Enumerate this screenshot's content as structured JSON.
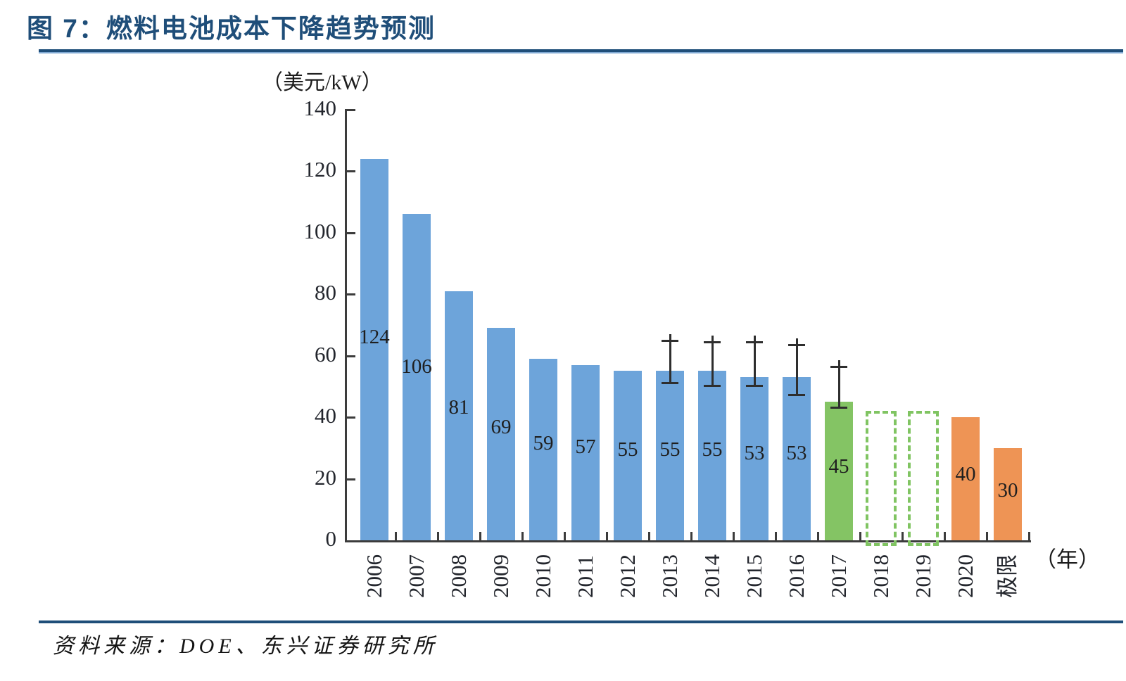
{
  "figure": {
    "title": "图 7：燃料电池成本下降趋势预测",
    "source": "资料来源：DOE、东兴证券研究所"
  },
  "chart_data": {
    "type": "bar",
    "title": "燃料电池成本下降趋势预测",
    "y_unit_label": "（美元/kW）",
    "x_unit_label": "（年）",
    "ylim": [
      0,
      140
    ],
    "ytick_interval": 20,
    "yticks": [
      0,
      20,
      40,
      60,
      80,
      100,
      120,
      140
    ],
    "grid": false,
    "legend": false,
    "categories": [
      "2006",
      "2007",
      "2008",
      "2009",
      "2010",
      "2011",
      "2012",
      "2013",
      "2014",
      "2015",
      "2016",
      "2017",
      "2018",
      "2019",
      "2020",
      "极限"
    ],
    "values": [
      124,
      106,
      81,
      69,
      59,
      57,
      55,
      55,
      55,
      53,
      53,
      45,
      null,
      null,
      40,
      30
    ],
    "bars": [
      {
        "category": "2006",
        "value": 124,
        "style": "blue"
      },
      {
        "category": "2007",
        "value": 106,
        "style": "blue"
      },
      {
        "category": "2008",
        "value": 81,
        "style": "blue"
      },
      {
        "category": "2009",
        "value": 69,
        "style": "blue"
      },
      {
        "category": "2010",
        "value": 59,
        "style": "blue"
      },
      {
        "category": "2011",
        "value": 57,
        "style": "blue"
      },
      {
        "category": "2012",
        "value": 55,
        "style": "blue"
      },
      {
        "category": "2013",
        "value": 55,
        "style": "blue",
        "error_low": 51,
        "error_high": 65
      },
      {
        "category": "2014",
        "value": 55,
        "style": "blue",
        "error_low": 50,
        "error_high": 64.5
      },
      {
        "category": "2015",
        "value": 53,
        "style": "blue",
        "error_low": 50,
        "error_high": 64.5
      },
      {
        "category": "2016",
        "value": 53,
        "style": "blue",
        "error_low": 47,
        "error_high": 63.5
      },
      {
        "category": "2017",
        "value": 45,
        "style": "green",
        "error_low": 43,
        "error_high": 56.5
      },
      {
        "category": "2018",
        "value": null,
        "style": "green-dashed",
        "outline_top": 42
      },
      {
        "category": "2019",
        "value": null,
        "style": "green-dashed",
        "outline_top": 42
      },
      {
        "category": "2020",
        "value": 40,
        "style": "orange"
      },
      {
        "category": "极限",
        "value": 30,
        "style": "orange"
      }
    ],
    "colors": {
      "blue": "#6DA4DA",
      "green": "#84C464",
      "green_dashed": "#80C462",
      "orange": "#EE9455",
      "error_bar": "#2E2E2E",
      "axis": "#3C3C3C",
      "value_label": "#1F1F1F",
      "accent": "#1F4E79"
    }
  }
}
